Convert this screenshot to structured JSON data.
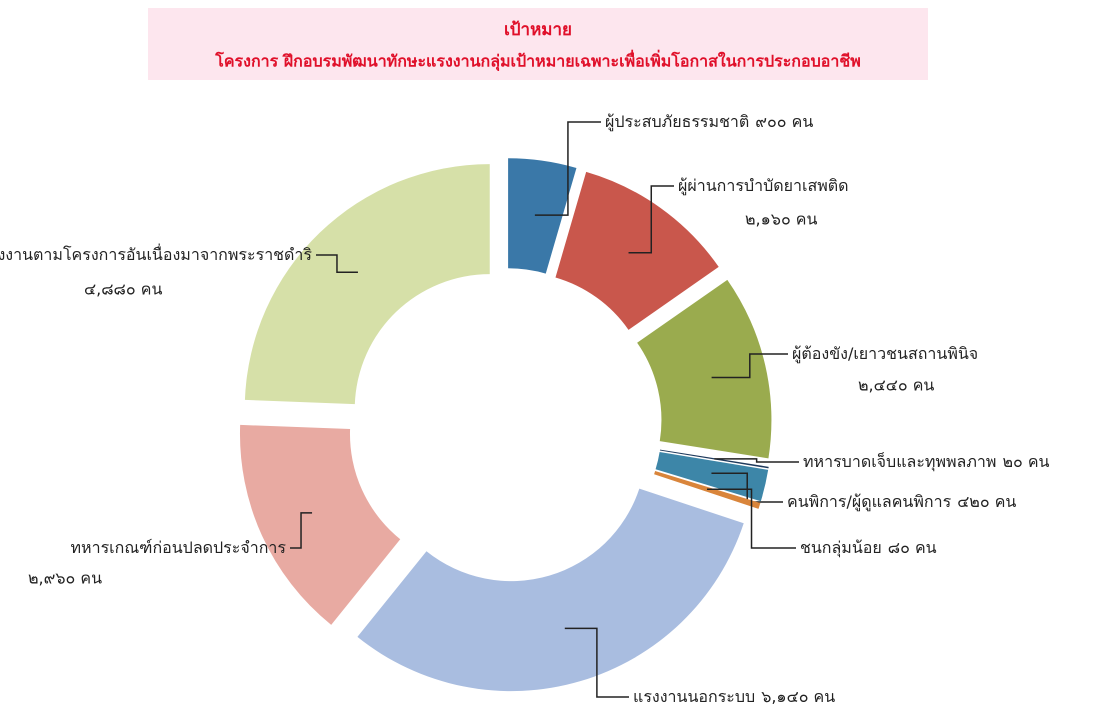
{
  "chart_data": {
    "type": "donut",
    "title": "เป้าหมาย",
    "subtitle": "โครงการ  ฝึกอบรมพัฒนาทักษะแรงงานกลุ่มเป้าหมายเฉพาะเพื่อเพิ่มโอกาสในการประกอบอาชีพ",
    "categories": [
      "ผู้ประสบภัยธรรมชาติ",
      "ผู้ผ่านการบำบัดยาเสพติด",
      "ผู้ต้องขัง/เยาวชนสถานพินิจ",
      "ทหารบาดเจ็บและทุพพลภาพ",
      "คนพิการ/ผู้ดูแลคนพิการ",
      "ชนกลุ่มน้อย",
      "แรงงานนอกระบบ",
      "ทหารเกณฑ์ก่อนปลดประจำการ",
      "แรงงานตามโครงการอันเนื่องมาจากพระราชดำริ"
    ],
    "values": [
      900,
      2160,
      2440,
      20,
      420,
      80,
      6140,
      2960,
      4880
    ],
    "value_labels": [
      "๙๐๐ คน",
      "๒,๑๖๐ คน",
      "๒,๔๔๐ คน",
      "๒๐ คน",
      "๔๒๐ คน",
      "๘๐ คน",
      "๖,๑๔๐ คน",
      "๒,๙๖๐ คน",
      "๔,๘๘๐ คน"
    ],
    "colors": [
      "#3a78a8",
      "#c9574c",
      "#9aab4e",
      "#1f3a5c",
      "#3d86a8",
      "#d9853b",
      "#a9bde0",
      "#e8aaa2",
      "#d6e0a8"
    ]
  }
}
